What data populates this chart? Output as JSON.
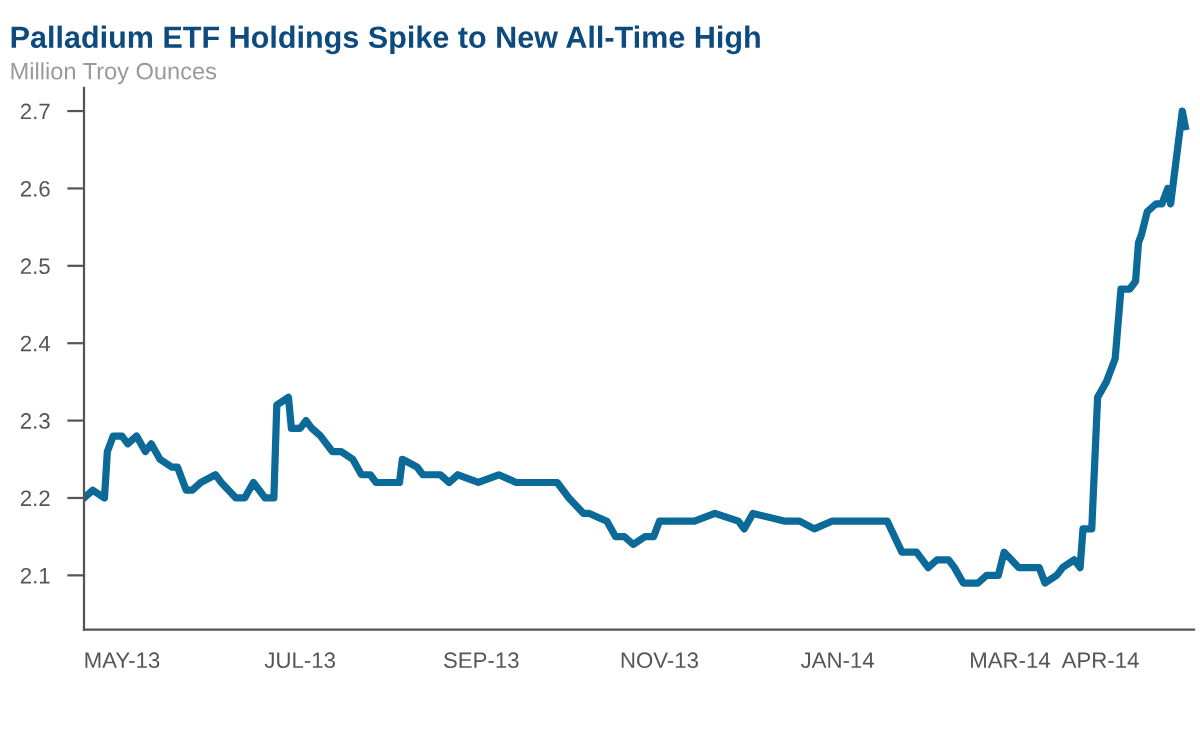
{
  "chart_data": {
    "type": "line",
    "title": "Palladium ETF Holdings Spike to New All-Time High",
    "subtitle": "Million Troy Ounces",
    "x": [
      "2013-04-18",
      "2013-04-21",
      "2013-04-25",
      "2013-04-26",
      "2013-04-28",
      "2013-05-01",
      "2013-05-03",
      "2013-05-06",
      "2013-05-09",
      "2013-05-11",
      "2013-05-14",
      "2013-05-18",
      "2013-05-20",
      "2013-05-23",
      "2013-05-25",
      "2013-05-28",
      "2013-06-02",
      "2013-06-04",
      "2013-06-09",
      "2013-06-12",
      "2013-06-15",
      "2013-06-19",
      "2013-06-22",
      "2013-06-23",
      "2013-06-27",
      "2013-06-28",
      "2013-07-01",
      "2013-07-03",
      "2013-07-05",
      "2013-07-08",
      "2013-07-12",
      "2013-07-15",
      "2013-07-19",
      "2013-07-22",
      "2013-07-25",
      "2013-07-27",
      "2013-08-01",
      "2013-08-04",
      "2013-08-05",
      "2013-08-10",
      "2013-08-12",
      "2013-08-18",
      "2013-08-21",
      "2013-08-24",
      "2013-08-31",
      "2013-09-07",
      "2013-09-13",
      "2013-09-20",
      "2013-09-23",
      "2013-09-27",
      "2013-10-01",
      "2013-10-06",
      "2013-10-08",
      "2013-10-14",
      "2013-10-17",
      "2013-10-20",
      "2013-10-23",
      "2013-10-27",
      "2013-10-30",
      "2013-11-01",
      "2013-11-13",
      "2013-11-20",
      "2013-11-28",
      "2013-11-30",
      "2013-12-03",
      "2013-12-14",
      "2013-12-19",
      "2013-12-24",
      "2013-12-30",
      "2014-01-01",
      "2014-01-14",
      "2014-01-18",
      "2014-01-23",
      "2014-01-28",
      "2014-02-01",
      "2014-02-04",
      "2014-02-08",
      "2014-02-10",
      "2014-02-13",
      "2014-02-18",
      "2014-02-21",
      "2014-02-25",
      "2014-02-27",
      "2014-03-04",
      "2014-03-11",
      "2014-03-13",
      "2014-03-17",
      "2014-03-19",
      "2014-03-23",
      "2014-03-25",
      "2014-03-26",
      "2014-03-29",
      "2014-03-31",
      "2014-04-03",
      "2014-04-06",
      "2014-04-08",
      "2014-04-11",
      "2014-04-13",
      "2014-04-14",
      "2014-04-15",
      "2014-04-17",
      "2014-04-20",
      "2014-04-22",
      "2014-04-24",
      "2014-04-25",
      "2014-04-29",
      "2014-04-30"
    ],
    "series": [
      {
        "color": "#0b6a97",
        "values": [
          2.2,
          2.21,
          2.2,
          2.26,
          2.28,
          2.28,
          2.27,
          2.28,
          2.26,
          2.27,
          2.25,
          2.24,
          2.24,
          2.21,
          2.21,
          2.22,
          2.23,
          2.22,
          2.2,
          2.2,
          2.22,
          2.2,
          2.2,
          2.32,
          2.33,
          2.29,
          2.29,
          2.3,
          2.29,
          2.28,
          2.26,
          2.26,
          2.25,
          2.23,
          2.23,
          2.22,
          2.22,
          2.22,
          2.25,
          2.24,
          2.23,
          2.23,
          2.22,
          2.23,
          2.22,
          2.23,
          2.22,
          2.22,
          2.22,
          2.22,
          2.2,
          2.18,
          2.18,
          2.17,
          2.15,
          2.15,
          2.14,
          2.15,
          2.15,
          2.17,
          2.17,
          2.18,
          2.17,
          2.16,
          2.18,
          2.17,
          2.17,
          2.16,
          2.17,
          2.17,
          2.17,
          2.17,
          2.13,
          2.13,
          2.11,
          2.12,
          2.12,
          2.11,
          2.09,
          2.09,
          2.1,
          2.1,
          2.13,
          2.11,
          2.11,
          2.09,
          2.1,
          2.11,
          2.12,
          2.11,
          2.16,
          2.16,
          2.33,
          2.35,
          2.38,
          2.47,
          2.47,
          2.48,
          2.53,
          2.54,
          2.57,
          2.58,
          2.58,
          2.6,
          2.58,
          2.7,
          2.68
        ]
      }
    ],
    "xlim": [
      "2013-04-18",
      "2014-05-03"
    ],
    "ylim": [
      2.03,
      2.73
    ],
    "xticks": [
      {
        "value": "2013-05-01",
        "label": "MAY-13"
      },
      {
        "value": "2013-07-01",
        "label": "JUL-13"
      },
      {
        "value": "2013-09-01",
        "label": "SEP-13"
      },
      {
        "value": "2013-11-01",
        "label": "NOV-13"
      },
      {
        "value": "2014-01-01",
        "label": "JAN-14"
      },
      {
        "value": "2014-03-01",
        "label": "MAR-14"
      },
      {
        "value": "2014-04-01",
        "label": "APR-14"
      }
    ],
    "yticks": [
      2.1,
      2.2,
      2.3,
      2.4,
      2.5,
      2.6,
      2.7
    ],
    "grid": false,
    "marker": "none",
    "line_style": "solid"
  }
}
